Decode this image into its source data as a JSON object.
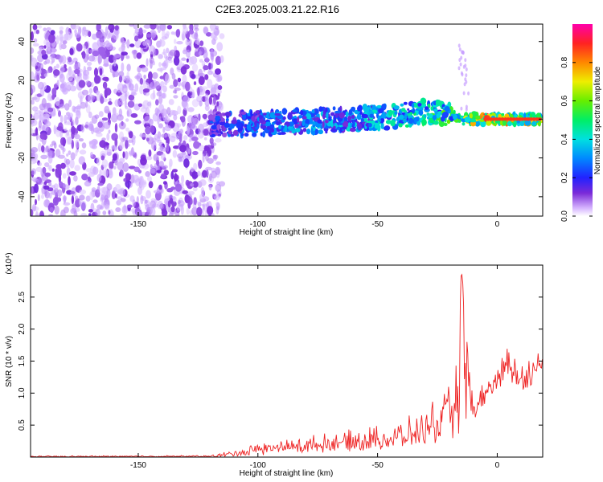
{
  "figure": {
    "title": "C2E3.2025.003.21.22.R16"
  },
  "colors": {
    "signal_red": "#ee2222",
    "axis": "#000000",
    "background": "#ffffff"
  },
  "chart_data": [
    {
      "type": "heatmap",
      "title": "C2E3.2025.003.21.22.R16",
      "xlabel": "Height of straight line (km)",
      "ylabel": "Frequency (Hz)",
      "xlim": [
        -195,
        19
      ],
      "ylim": [
        -50,
        49
      ],
      "x_ticks": [
        -150,
        -100,
        -50,
        0
      ],
      "y_ticks": [
        -40,
        -20,
        0,
        20,
        40
      ],
      "colorbar": {
        "label": "Normalized spectral amplitude",
        "range": [
          0.0,
          1.0
        ],
        "ticks": [
          0.0,
          0.2,
          0.4,
          0.6,
          0.8
        ],
        "colormap": "rainbow (purple-blue-cyan-green-yellow-red-magenta)"
      },
      "features": {
        "noise_region_x": [
          -195,
          -120
        ],
        "ridge_x": [
          -120,
          19
        ],
        "ridge": [
          {
            "x": -115,
            "freq": -3,
            "amp": 0.25
          },
          {
            "x": -100,
            "freq": -2,
            "amp": 0.3
          },
          {
            "x": -80,
            "freq": -1,
            "amp": 0.35
          },
          {
            "x": -60,
            "freq": 0,
            "amp": 0.38
          },
          {
            "x": -45,
            "freq": 1,
            "amp": 0.42
          },
          {
            "x": -30,
            "freq": 4,
            "amp": 0.5
          },
          {
            "x": -20,
            "freq": 3,
            "amp": 0.55
          },
          {
            "x": -15,
            "freq": 0,
            "amp": 0.6
          },
          {
            "x": -5,
            "freq": 0,
            "amp": 0.85
          },
          {
            "x": 0,
            "freq": 0,
            "amp": 0.8
          },
          {
            "x": 10,
            "freq": 0,
            "amp": 0.75
          },
          {
            "x": 18,
            "freq": 0,
            "amp": 0.7
          }
        ]
      }
    },
    {
      "type": "line",
      "xlabel": "Height of straight line (km)",
      "ylabel": "SNR (10 * v/v)",
      "y_multiplier": "(x10⁴)",
      "xlim": [
        -195,
        19
      ],
      "ylim": [
        0,
        3.0
      ],
      "x_ticks": [
        -150,
        -100,
        -50,
        0
      ],
      "y_ticks": [
        0.5,
        1.0,
        1.5,
        2.0,
        2.5
      ],
      "series": [
        {
          "color": "#ee2222",
          "envelope": [
            {
              "x": -195,
              "low": 0.0,
              "high": 0.02
            },
            {
              "x": -120,
              "low": 0.0,
              "high": 0.03
            },
            {
              "x": -110,
              "low": 0.0,
              "high": 0.12
            },
            {
              "x": -100,
              "low": 0.02,
              "high": 0.25
            },
            {
              "x": -80,
              "low": 0.05,
              "high": 0.35
            },
            {
              "x": -60,
              "low": 0.08,
              "high": 0.45
            },
            {
              "x": -40,
              "low": 0.1,
              "high": 0.6
            },
            {
              "x": -30,
              "low": 0.15,
              "high": 0.8
            },
            {
              "x": -20,
              "low": 0.2,
              "high": 1.2
            },
            {
              "x": -16,
              "low": 0.3,
              "high": 1.75
            },
            {
              "x": -15,
              "low": 0.5,
              "high": 2.95
            },
            {
              "x": -10,
              "low": 0.5,
              "high": 1.0
            },
            {
              "x": 0,
              "low": 1.0,
              "high": 1.5
            },
            {
              "x": 5,
              "low": 1.1,
              "high": 1.95
            },
            {
              "x": 10,
              "low": 1.0,
              "high": 1.5
            },
            {
              "x": 19,
              "low": 1.2,
              "high": 1.75
            }
          ]
        }
      ]
    }
  ]
}
